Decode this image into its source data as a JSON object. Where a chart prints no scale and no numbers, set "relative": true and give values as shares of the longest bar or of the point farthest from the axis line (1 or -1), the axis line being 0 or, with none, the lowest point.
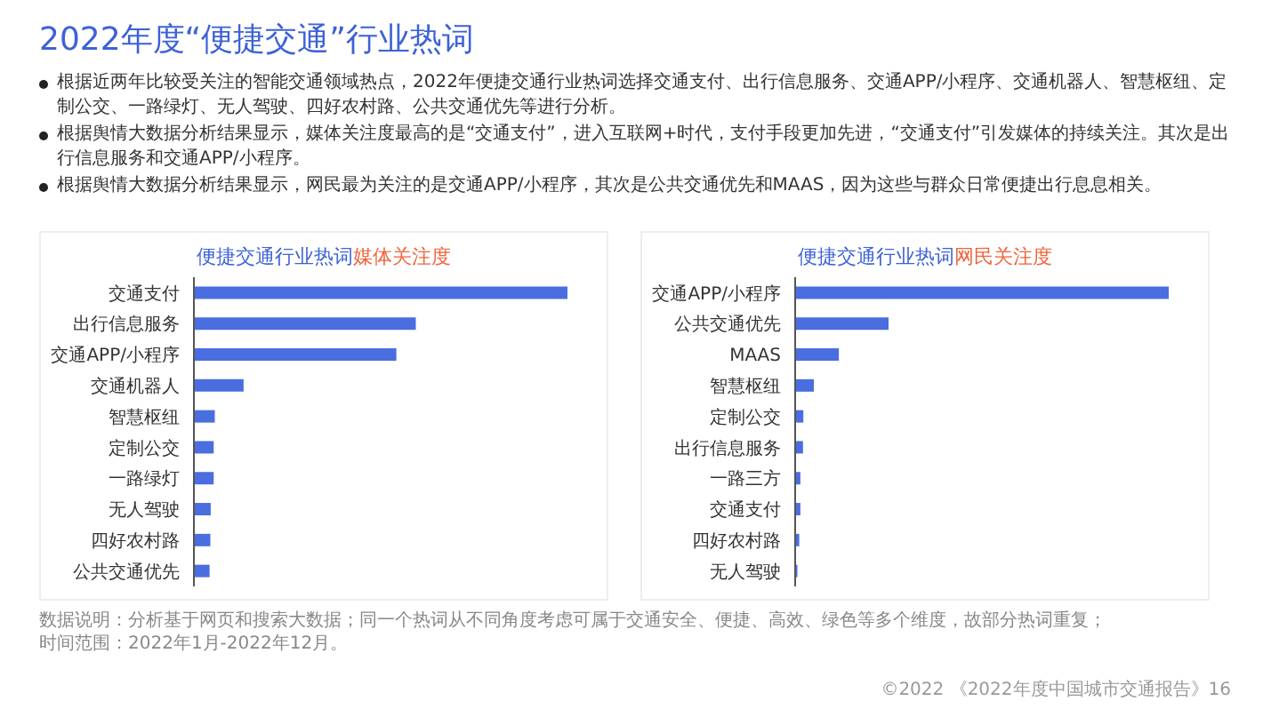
{
  "chart_data": [
    {
      "type": "other",
      "title": "2022年度“便捷交通”行业热词",
      "annotations": [
        "根据近两年比较受关注的智能交通领域热点，2022年便捷交通行业热词选择交通支付、出行信息服务、交通APP/小程序、交通机器人、智慧枢纽、定制公交、一路绿灯、无人驾驶、四好农村路、公共交通优先等进行分析。",
        "根据舆情大数据分析结果显示，媒体关注度最高的是“交通支付”，进入互联网+时代，支付手段更加先进，“交通支付”引发媒体的持续关注。其次是出行信息服务和交通APP/小程序。",
        "根据舆情大数据分析结果显示，网民最为关注的是交通APP/小程序，其次是公共交通优先和MAAS，因为这些与群众日常便捷出行息息相关。"
      ]
    },
    {
      "type": "bar",
      "title": "便捷交通行业热词",
      "subtitle": "媒体关注度",
      "orientation": "horizontal",
      "relative": true,
      "tick_labels": "y",
      "color": "#4a6ee0",
      "categories": [
        "交通支付",
        "出行信息服务",
        "交通APP/小程序",
        "交通机器人",
        "智慧枢纽",
        "定制公交",
        "一路绿灯",
        "无人驾驶",
        "四好农村路",
        "公共交通优先"
      ],
      "values": [
        1,
        0.594,
        0.542,
        0.133,
        0.056,
        0.053,
        0.053,
        0.045,
        0.044,
        0.042
      ]
    },
    {
      "type": "bar",
      "title": "便捷交通行业热词",
      "subtitle": "网民关注度",
      "orientation": "horizontal",
      "relative": true,
      "tick_labels": "y",
      "color": "#4a6ee0",
      "categories": [
        "交通APP/小程序",
        "公共交通优先",
        "MAAS",
        "智慧枢纽",
        "定制公交",
        "出行信息服务",
        "一路三方",
        "交通支付",
        "四好农村路",
        "无人驾驶"
      ],
      "values": [
        1,
        0.25,
        0.117,
        0.05,
        0.022,
        0.021,
        0.014,
        0.014,
        0.011,
        0.006
      ]
    },
    {
      "type": "other",
      "annotations": [
        "数据说明：分析基于网页和搜索大数据；同一个热词从不同角度考虑可属于交通安全、便捷、高效、绿色等多个维度，故部分热词重复；",
        "时间范围：2022年1月-2022年12月。",
        "©2022 《2022年度中国城市交通报告》16"
      ]
    }
  ]
}
